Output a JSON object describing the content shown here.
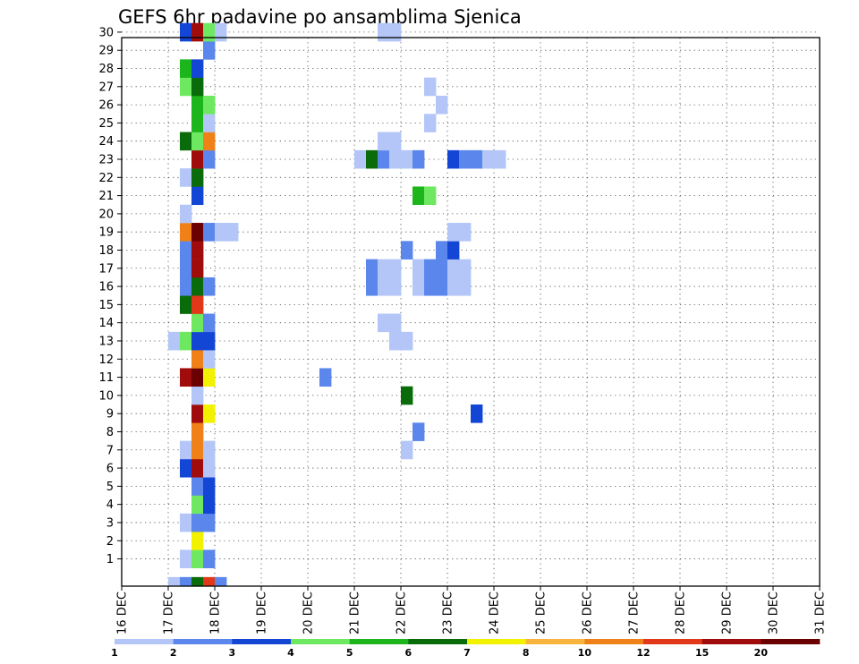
{
  "chart_data": {
    "type": "heatmap",
    "title": "GEFS 6hr padavine po ansamblima Sjenica",
    "x_ticks": [
      "16 DEC",
      "17 DEC",
      "18 DEC",
      "19 DEC",
      "20 DEC",
      "21 DEC",
      "22 DEC",
      "23 DEC",
      "24 DEC",
      "25 DEC",
      "26 DEC",
      "27 DEC",
      "28 DEC",
      "29 DEC",
      "30 DEC",
      "31 DEC"
    ],
    "y_ticks": [
      "1",
      "2",
      "3",
      "4",
      "5",
      "6",
      "7",
      "8",
      "9",
      "10",
      "11",
      "12",
      "13",
      "14",
      "15",
      "16",
      "17",
      "18",
      "19",
      "20",
      "21",
      "22",
      "23",
      "24",
      "25",
      "26",
      "27",
      "28",
      "29",
      "30"
    ],
    "x_unit": "6-hour step from 16 DEC 00Z",
    "grid": true,
    "colorbar": {
      "labels": [
        "1",
        "2",
        "3",
        "4",
        "5",
        "6",
        "7",
        "8",
        "10",
        "12",
        "15",
        "20"
      ],
      "colors": [
        "#b3c6f7",
        "#5b86ec",
        "#1446d6",
        "#6ee860",
        "#1cb61c",
        "#0a6b0a",
        "#f2f200",
        "#f8b43c",
        "#f08018",
        "#e03818",
        "#a00c0c",
        "#6a0000"
      ]
    },
    "points": [
      [
        0,
        4,
        1
      ],
      [
        0,
        5,
        2
      ],
      [
        0,
        6,
        6
      ],
      [
        0,
        7,
        10
      ],
      [
        0,
        8,
        2
      ],
      [
        1,
        5,
        1
      ],
      [
        1,
        6,
        4
      ],
      [
        1,
        7,
        2
      ],
      [
        2,
        6,
        7
      ],
      [
        3,
        5,
        1
      ],
      [
        3,
        6,
        2
      ],
      [
        3,
        7,
        2
      ],
      [
        4,
        6,
        4
      ],
      [
        4,
        7,
        3
      ],
      [
        5,
        6,
        2
      ],
      [
        5,
        7,
        3
      ],
      [
        6,
        5,
        3
      ],
      [
        6,
        6,
        11
      ],
      [
        6,
        7,
        1
      ],
      [
        7,
        5,
        1
      ],
      [
        7,
        6,
        9
      ],
      [
        7,
        7,
        1
      ],
      [
        7,
        24,
        1
      ],
      [
        8,
        6,
        9
      ],
      [
        8,
        25,
        2
      ],
      [
        9,
        6,
        11
      ],
      [
        9,
        7,
        7
      ],
      [
        9,
        30,
        3
      ],
      [
        10,
        6,
        1
      ],
      [
        10,
        24,
        6
      ],
      [
        11,
        5,
        11
      ],
      [
        11,
        6,
        12
      ],
      [
        11,
        7,
        7
      ],
      [
        11,
        17,
        2
      ],
      [
        12,
        6,
        9
      ],
      [
        12,
        7,
        1
      ],
      [
        13,
        4,
        1
      ],
      [
        13,
        5,
        4
      ],
      [
        13,
        6,
        3
      ],
      [
        13,
        7,
        3
      ],
      [
        13,
        23,
        1
      ],
      [
        13,
        24,
        1
      ],
      [
        14,
        6,
        4
      ],
      [
        14,
        7,
        2
      ],
      [
        14,
        22,
        1
      ],
      [
        14,
        23,
        1
      ],
      [
        15,
        5,
        6
      ],
      [
        15,
        6,
        10
      ],
      [
        16,
        5,
        2
      ],
      [
        16,
        6,
        6
      ],
      [
        16,
        7,
        2
      ],
      [
        16,
        21,
        2
      ],
      [
        16,
        22,
        1
      ],
      [
        16,
        23,
        1
      ],
      [
        16,
        25,
        1
      ],
      [
        16,
        26,
        2
      ],
      [
        16,
        27,
        2
      ],
      [
        16,
        28,
        1
      ],
      [
        16,
        29,
        1
      ],
      [
        17,
        5,
        2
      ],
      [
        17,
        6,
        11
      ],
      [
        17,
        21,
        2
      ],
      [
        17,
        22,
        1
      ],
      [
        17,
        23,
        1
      ],
      [
        17,
        25,
        1
      ],
      [
        17,
        26,
        2
      ],
      [
        17,
        27,
        2
      ],
      [
        17,
        28,
        1
      ],
      [
        17,
        29,
        1
      ],
      [
        18,
        5,
        2
      ],
      [
        18,
        6,
        11
      ],
      [
        18,
        24,
        2
      ],
      [
        18,
        27,
        2
      ],
      [
        18,
        28,
        3
      ],
      [
        19,
        5,
        9
      ],
      [
        19,
        6,
        12
      ],
      [
        19,
        7,
        2
      ],
      [
        19,
        8,
        1
      ],
      [
        19,
        9,
        1
      ],
      [
        19,
        28,
        1
      ],
      [
        19,
        29,
        1
      ],
      [
        20,
        5,
        1
      ],
      [
        21,
        6,
        3
      ],
      [
        21,
        25,
        5
      ],
      [
        21,
        26,
        4
      ],
      [
        22,
        5,
        1
      ],
      [
        22,
        6,
        6
      ],
      [
        23,
        6,
        11
      ],
      [
        23,
        7,
        2
      ],
      [
        23,
        20,
        1
      ],
      [
        23,
        21,
        6
      ],
      [
        23,
        22,
        2
      ],
      [
        23,
        23,
        1
      ],
      [
        23,
        24,
        1
      ],
      [
        23,
        25,
        2
      ],
      [
        23,
        28,
        3
      ],
      [
        23,
        29,
        2
      ],
      [
        23,
        30,
        2
      ],
      [
        23,
        31,
        1
      ],
      [
        23,
        32,
        1
      ],
      [
        24,
        5,
        6
      ],
      [
        24,
        6,
        4
      ],
      [
        24,
        7,
        9
      ],
      [
        24,
        22,
        1
      ],
      [
        24,
        23,
        1
      ],
      [
        25,
        6,
        5
      ],
      [
        25,
        7,
        1
      ],
      [
        25,
        26,
        1
      ],
      [
        26,
        6,
        5
      ],
      [
        26,
        7,
        4
      ],
      [
        26,
        27,
        1
      ],
      [
        27,
        5,
        4
      ],
      [
        27,
        6,
        6
      ],
      [
        27,
        26,
        1
      ],
      [
        28,
        5,
        5
      ],
      [
        28,
        6,
        3
      ],
      [
        29,
        7,
        2
      ],
      [
        30,
        5,
        3
      ],
      [
        30,
        6,
        11
      ],
      [
        30,
        7,
        4
      ],
      [
        30,
        8,
        1
      ],
      [
        30,
        22,
        1
      ],
      [
        30,
        23,
        1
      ]
    ]
  }
}
